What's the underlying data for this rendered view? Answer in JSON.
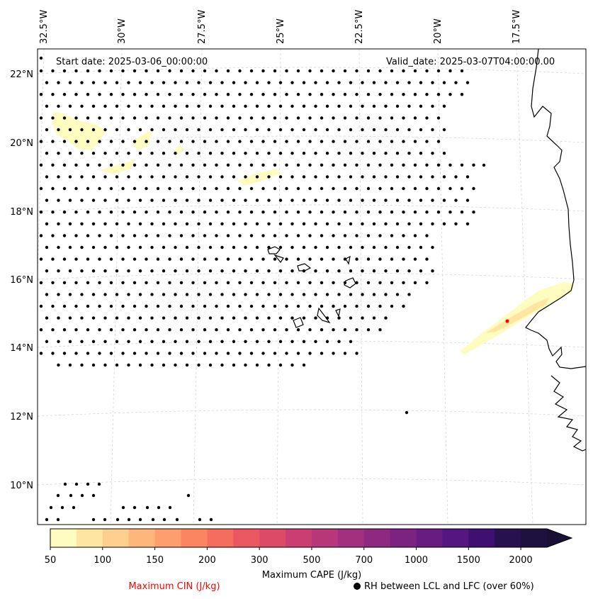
{
  "map": {
    "start_date_label": "Start date: 2025-03-06_00:00:00",
    "valid_date_label": "Valid_date: 2025-03-07T04:00:00.00",
    "lon_labels": [
      "32.5°W",
      "30°W",
      "27.5°W",
      "25°W",
      "22.5°W",
      "20°W",
      "17.5°W"
    ],
    "lat_labels": [
      "22°N",
      "20°N",
      "18°N",
      "16°N",
      "14°N",
      "12°N",
      "10°N"
    ]
  },
  "colorbar": {
    "title": "Maximum CAPE (J/kg)",
    "tick_labels": [
      "50",
      "100",
      "150",
      "200",
      "300",
      "500",
      "700",
      "1000",
      "1500",
      "2000"
    ],
    "colors": [
      "#fefdbf",
      "#fee6a2",
      "#fece8d",
      "#feb67a",
      "#fd9e6c",
      "#fb8561",
      "#f56d5c",
      "#eb5760",
      "#dc4a67",
      "#ca3e72",
      "#b73779",
      "#a3307e",
      "#8f2880",
      "#7c2382",
      "#681c81",
      "#541680",
      "#3f0f72",
      "#28114f",
      "#1e1140"
    ],
    "extend_color": "#1a1035"
  },
  "legend": {
    "cin_label": "Maximum CIN (J/kg)",
    "cin_color": "#ff0000",
    "rh_label": "RH between LCL and LFC (over 60%)"
  }
}
